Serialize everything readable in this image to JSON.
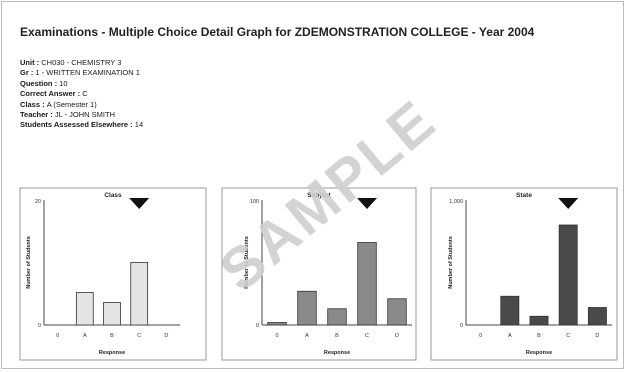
{
  "report": {
    "title": "Examinations - Multiple Choice Detail Graph for ZDEMONSTRATION COLLEGE - Year 2004",
    "info": [
      {
        "label": "Unit : ",
        "value": "CH030 - CHEMISTRY 3"
      },
      {
        "label": "Gr : ",
        "value": "1 - WRITTEN EXAMINATION 1"
      },
      {
        "label": "Question : ",
        "value": "10"
      },
      {
        "label": "Correct Answer : ",
        "value": "C"
      },
      {
        "label": "Class : ",
        "value": "A (Semester 1)"
      },
      {
        "label": "Teacher : ",
        "value": "JL - JOHN SMITH"
      },
      {
        "label": "Students Assessed Elsewhere : ",
        "value": "14"
      }
    ],
    "watermark": "SAMPLE"
  },
  "colors": {
    "class_bar": "#e4e4e4",
    "subject_bar": "#8a8a8a",
    "state_bar": "#4a4a4a",
    "marker": "#111111"
  },
  "chart_data": [
    {
      "type": "bar",
      "title": "Class",
      "xlabel": "Response",
      "ylabel": "Number of Students",
      "categories": [
        "0",
        "A",
        "B",
        "C",
        "D"
      ],
      "values": [
        0,
        5.2,
        3.6,
        10,
        0
      ],
      "ylim": [
        0,
        20
      ],
      "y_ticks": [
        "20",
        "0"
      ],
      "correct_answer": "C",
      "grid": false,
      "legend": "none"
    },
    {
      "type": "bar",
      "title": "Subject",
      "xlabel": "Response",
      "ylabel": "Number of Students",
      "categories": [
        "0",
        "A",
        "B",
        "C",
        "D"
      ],
      "values": [
        2,
        27,
        13,
        66,
        21
      ],
      "ylim": [
        0,
        100
      ],
      "y_ticks": [
        "100",
        "0"
      ],
      "correct_answer": "C",
      "grid": false,
      "legend": "none"
    },
    {
      "type": "bar",
      "title": "State",
      "xlabel": "Response",
      "ylabel": "Number of Students",
      "categories": [
        "0",
        "A",
        "B",
        "C",
        "D"
      ],
      "values": [
        0,
        230,
        70,
        800,
        140
      ],
      "ylim": [
        0,
        1000
      ],
      "y_ticks": [
        "1,000",
        "0"
      ],
      "correct_answer": "C",
      "grid": false,
      "legend": "none"
    }
  ]
}
